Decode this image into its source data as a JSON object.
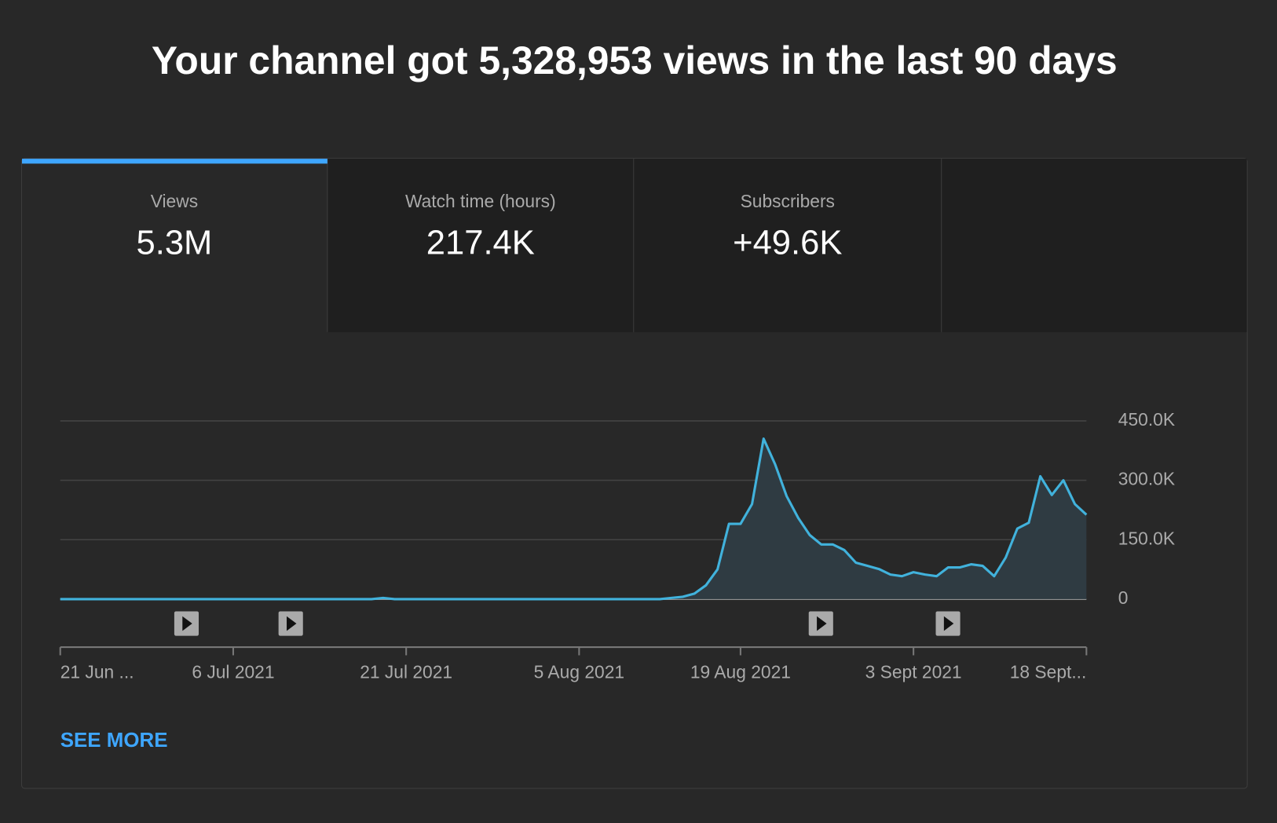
{
  "header": {
    "title": "Your channel got 5,328,953 views in the last 90 days"
  },
  "tabs": [
    {
      "label": "Views",
      "value": "5.3M"
    },
    {
      "label": "Watch time (hours)",
      "value": "217.4K"
    },
    {
      "label": "Subscribers",
      "value": "+49.6K"
    }
  ],
  "chart_data": {
    "type": "line",
    "color": "#41b2dc",
    "x": [
      "2021-06-21",
      "2021-06-22",
      "2021-06-23",
      "2021-06-24",
      "2021-06-25",
      "2021-06-26",
      "2021-06-27",
      "2021-06-28",
      "2021-06-29",
      "2021-06-30",
      "2021-07-01",
      "2021-07-02",
      "2021-07-03",
      "2021-07-04",
      "2021-07-05",
      "2021-07-06",
      "2021-07-07",
      "2021-07-08",
      "2021-07-09",
      "2021-07-10",
      "2021-07-11",
      "2021-07-12",
      "2021-07-13",
      "2021-07-14",
      "2021-07-15",
      "2021-07-16",
      "2021-07-17",
      "2021-07-18",
      "2021-07-19",
      "2021-07-20",
      "2021-07-21",
      "2021-07-22",
      "2021-07-23",
      "2021-07-24",
      "2021-07-25",
      "2021-07-26",
      "2021-07-27",
      "2021-07-28",
      "2021-07-29",
      "2021-07-30",
      "2021-07-31",
      "2021-08-01",
      "2021-08-02",
      "2021-08-03",
      "2021-08-04",
      "2021-08-05",
      "2021-08-06",
      "2021-08-07",
      "2021-08-08",
      "2021-08-09",
      "2021-08-10",
      "2021-08-11",
      "2021-08-12",
      "2021-08-13",
      "2021-08-14",
      "2021-08-15",
      "2021-08-16",
      "2021-08-17",
      "2021-08-18",
      "2021-08-19",
      "2021-08-20",
      "2021-08-21",
      "2021-08-22",
      "2021-08-23",
      "2021-08-24",
      "2021-08-25",
      "2021-08-26",
      "2021-08-27",
      "2021-08-28",
      "2021-08-29",
      "2021-08-30",
      "2021-08-31",
      "2021-09-01",
      "2021-09-02",
      "2021-09-03",
      "2021-09-04",
      "2021-09-05",
      "2021-09-06",
      "2021-09-07",
      "2021-09-08",
      "2021-09-09",
      "2021-09-10",
      "2021-09-11",
      "2021-09-12",
      "2021-09-13",
      "2021-09-14",
      "2021-09-15",
      "2021-09-16",
      "2021-09-17",
      "2021-09-18"
    ],
    "values": [
      0,
      0,
      0,
      0,
      0,
      0,
      0,
      0,
      0,
      0,
      0,
      0,
      0,
      0,
      0,
      0,
      0,
      0,
      0,
      0,
      0,
      0,
      0,
      0,
      0,
      0,
      0,
      0,
      3000,
      0,
      0,
      0,
      0,
      0,
      0,
      0,
      0,
      0,
      0,
      0,
      0,
      0,
      0,
      0,
      0,
      0,
      0,
      0,
      0,
      0,
      0,
      0,
      0,
      3000,
      6000,
      14000,
      35000,
      75000,
      190000,
      190000,
      240000,
      405000,
      340000,
      260000,
      205000,
      162000,
      138000,
      138000,
      124000,
      92000,
      84000,
      76000,
      62000,
      58000,
      68000,
      62000,
      58000,
      80000,
      80000,
      88000,
      84000,
      58000,
      105000,
      178000,
      193000,
      310000,
      263000,
      300000,
      240000,
      213000
    ],
    "xlim": [
      "2021-06-21",
      "2021-09-18"
    ],
    "xticks": [
      {
        "value": "2021-06-21",
        "label": "21 Jun ..."
      },
      {
        "value": "2021-07-06",
        "label": "6 Jul 2021"
      },
      {
        "value": "2021-07-21",
        "label": "21 Jul 2021"
      },
      {
        "value": "2021-08-05",
        "label": "5 Aug 2021"
      },
      {
        "value": "2021-08-19",
        "label": "19 Aug 2021"
      },
      {
        "value": "2021-09-03",
        "label": "3 Sept 2021"
      },
      {
        "value": "2021-09-18",
        "label": "18 Sept..."
      }
    ],
    "ylim": [
      0,
      450000
    ],
    "yticks": [
      0,
      {
        "value": 150000,
        "label": "150.0K"
      },
      {
        "value": 300000,
        "label": "300.0K"
      },
      {
        "value": 450000,
        "label": "450.0K"
      }
    ],
    "grid": true
  },
  "link": {
    "label": "SEE MORE"
  }
}
